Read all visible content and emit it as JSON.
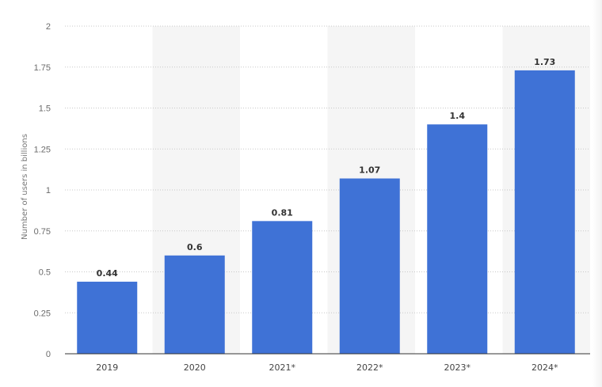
{
  "chart_data": {
    "type": "bar",
    "categories": [
      "2019",
      "2020",
      "2021*",
      "2022*",
      "2023*",
      "2024*"
    ],
    "values": [
      0.44,
      0.6,
      0.81,
      1.07,
      1.4,
      1.73
    ],
    "value_labels": [
      "0.44",
      "0.6",
      "0.81",
      "1.07",
      "1.4",
      "1.73"
    ],
    "title": "",
    "xlabel": "",
    "ylabel": "Number of users in billions",
    "ylim": [
      0,
      2
    ],
    "yticks": [
      0,
      0.25,
      0.5,
      0.75,
      1,
      1.25,
      1.5,
      1.75,
      2
    ],
    "ytick_labels": [
      "0",
      "0.25",
      "0.5",
      "0.75",
      "1",
      "1.25",
      "1.5",
      "1.75",
      "2"
    ],
    "grid": "horizontal dotted",
    "bar_color": "#3f72d6",
    "band_color": "#f5f5f5"
  }
}
